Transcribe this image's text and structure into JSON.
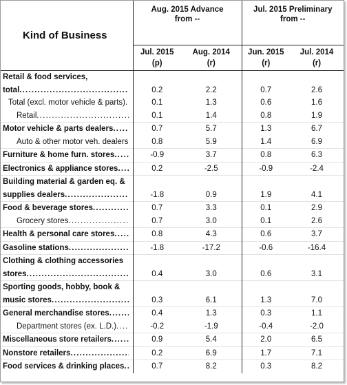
{
  "header": {
    "kind": "Kind of Business",
    "groups": [
      {
        "lines": [
          "Aug. 2015 Advance",
          "from --"
        ]
      },
      {
        "lines": [
          "Jul. 2015 Preliminary",
          "from --"
        ]
      }
    ],
    "columns": [
      {
        "period": "Jul. 2015",
        "note": "(p)"
      },
      {
        "period": "Aug. 2014",
        "note": "(r)"
      },
      {
        "period": "Jun. 2015",
        "note": "(r)"
      },
      {
        "period": "Jul. 2014",
        "note": "(r)"
      }
    ]
  },
  "table": {
    "rows": [
      {
        "label": [
          "Retail & food services,",
          "total"
        ],
        "level": 0,
        "values": [
          "0.2",
          "2.2",
          "0.7",
          "2.6"
        ]
      },
      {
        "label": [
          "Total (excl. motor vehicle & parts)"
        ],
        "level": 1,
        "values": [
          "0.1",
          "1.3",
          "0.6",
          "1.6"
        ]
      },
      {
        "label": [
          "Retail"
        ],
        "level": 2,
        "values": [
          "0.1",
          "1.4",
          "0.8",
          "1.9"
        ]
      },
      {
        "label": [
          "Motor vehicle & parts dealers"
        ],
        "level": 0,
        "values": [
          "0.7",
          "5.7",
          "1.3",
          "6.7"
        ]
      },
      {
        "label": [
          "Auto & other motor veh. dealers"
        ],
        "level": 2,
        "values": [
          "0.8",
          "5.9",
          "1.4",
          "6.9"
        ]
      },
      {
        "label": [
          "Furniture & home furn. stores"
        ],
        "level": 0,
        "values": [
          "-0.9",
          "3.7",
          "0.8",
          "6.3"
        ]
      },
      {
        "label": [
          "Electronics & appliance stores"
        ],
        "level": 0,
        "values": [
          "0.2",
          "-2.5",
          "-0.9",
          "-2.4"
        ]
      },
      {
        "label": [
          "Building material & garden eq. &",
          "supplies dealers"
        ],
        "level": 0,
        "values": [
          "-1.8",
          "0.9",
          "1.9",
          "4.1"
        ]
      },
      {
        "label": [
          "Food & beverage stores"
        ],
        "level": 0,
        "values": [
          "0.7",
          "3.3",
          "0.1",
          "2.9"
        ]
      },
      {
        "label": [
          "Grocery stores"
        ],
        "level": 2,
        "values": [
          "0.7",
          "3.0",
          "0.1",
          "2.6"
        ]
      },
      {
        "label": [
          "Health & personal care stores"
        ],
        "level": 0,
        "values": [
          "0.8",
          "4.3",
          "0.6",
          "3.7"
        ]
      },
      {
        "label": [
          "Gasoline stations"
        ],
        "level": 0,
        "values": [
          "-1.8",
          "-17.2",
          "-0.6",
          "-16.4"
        ]
      },
      {
        "label": [
          "Clothing & clothing accessories",
          "stores"
        ],
        "level": 0,
        "values": [
          "0.4",
          "3.0",
          "0.6",
          "3.1"
        ]
      },
      {
        "label": [
          "Sporting goods, hobby, book &",
          "music stores"
        ],
        "level": 0,
        "values": [
          "0.3",
          "6.1",
          "1.3",
          "7.0"
        ]
      },
      {
        "label": [
          "General merchandise stores"
        ],
        "level": 0,
        "values": [
          "0.4",
          "1.3",
          "0.3",
          "1.1"
        ]
      },
      {
        "label": [
          "Department stores (ex. L.D.)"
        ],
        "level": 2,
        "values": [
          "-0.2",
          "-1.9",
          "-0.4",
          "-2.0"
        ]
      },
      {
        "label": [
          "Miscellaneous store retailers"
        ],
        "level": 0,
        "values": [
          "0.9",
          "5.4",
          "2.0",
          "6.5"
        ]
      },
      {
        "label": [
          "Nonstore retailers"
        ],
        "level": 0,
        "values": [
          "0.2",
          "6.9",
          "1.7",
          "7.1"
        ]
      },
      {
        "label": [
          "Food services & drinking places"
        ],
        "level": 0,
        "values": [
          "0.7",
          "8.2",
          "0.3",
          "8.2"
        ]
      }
    ]
  }
}
